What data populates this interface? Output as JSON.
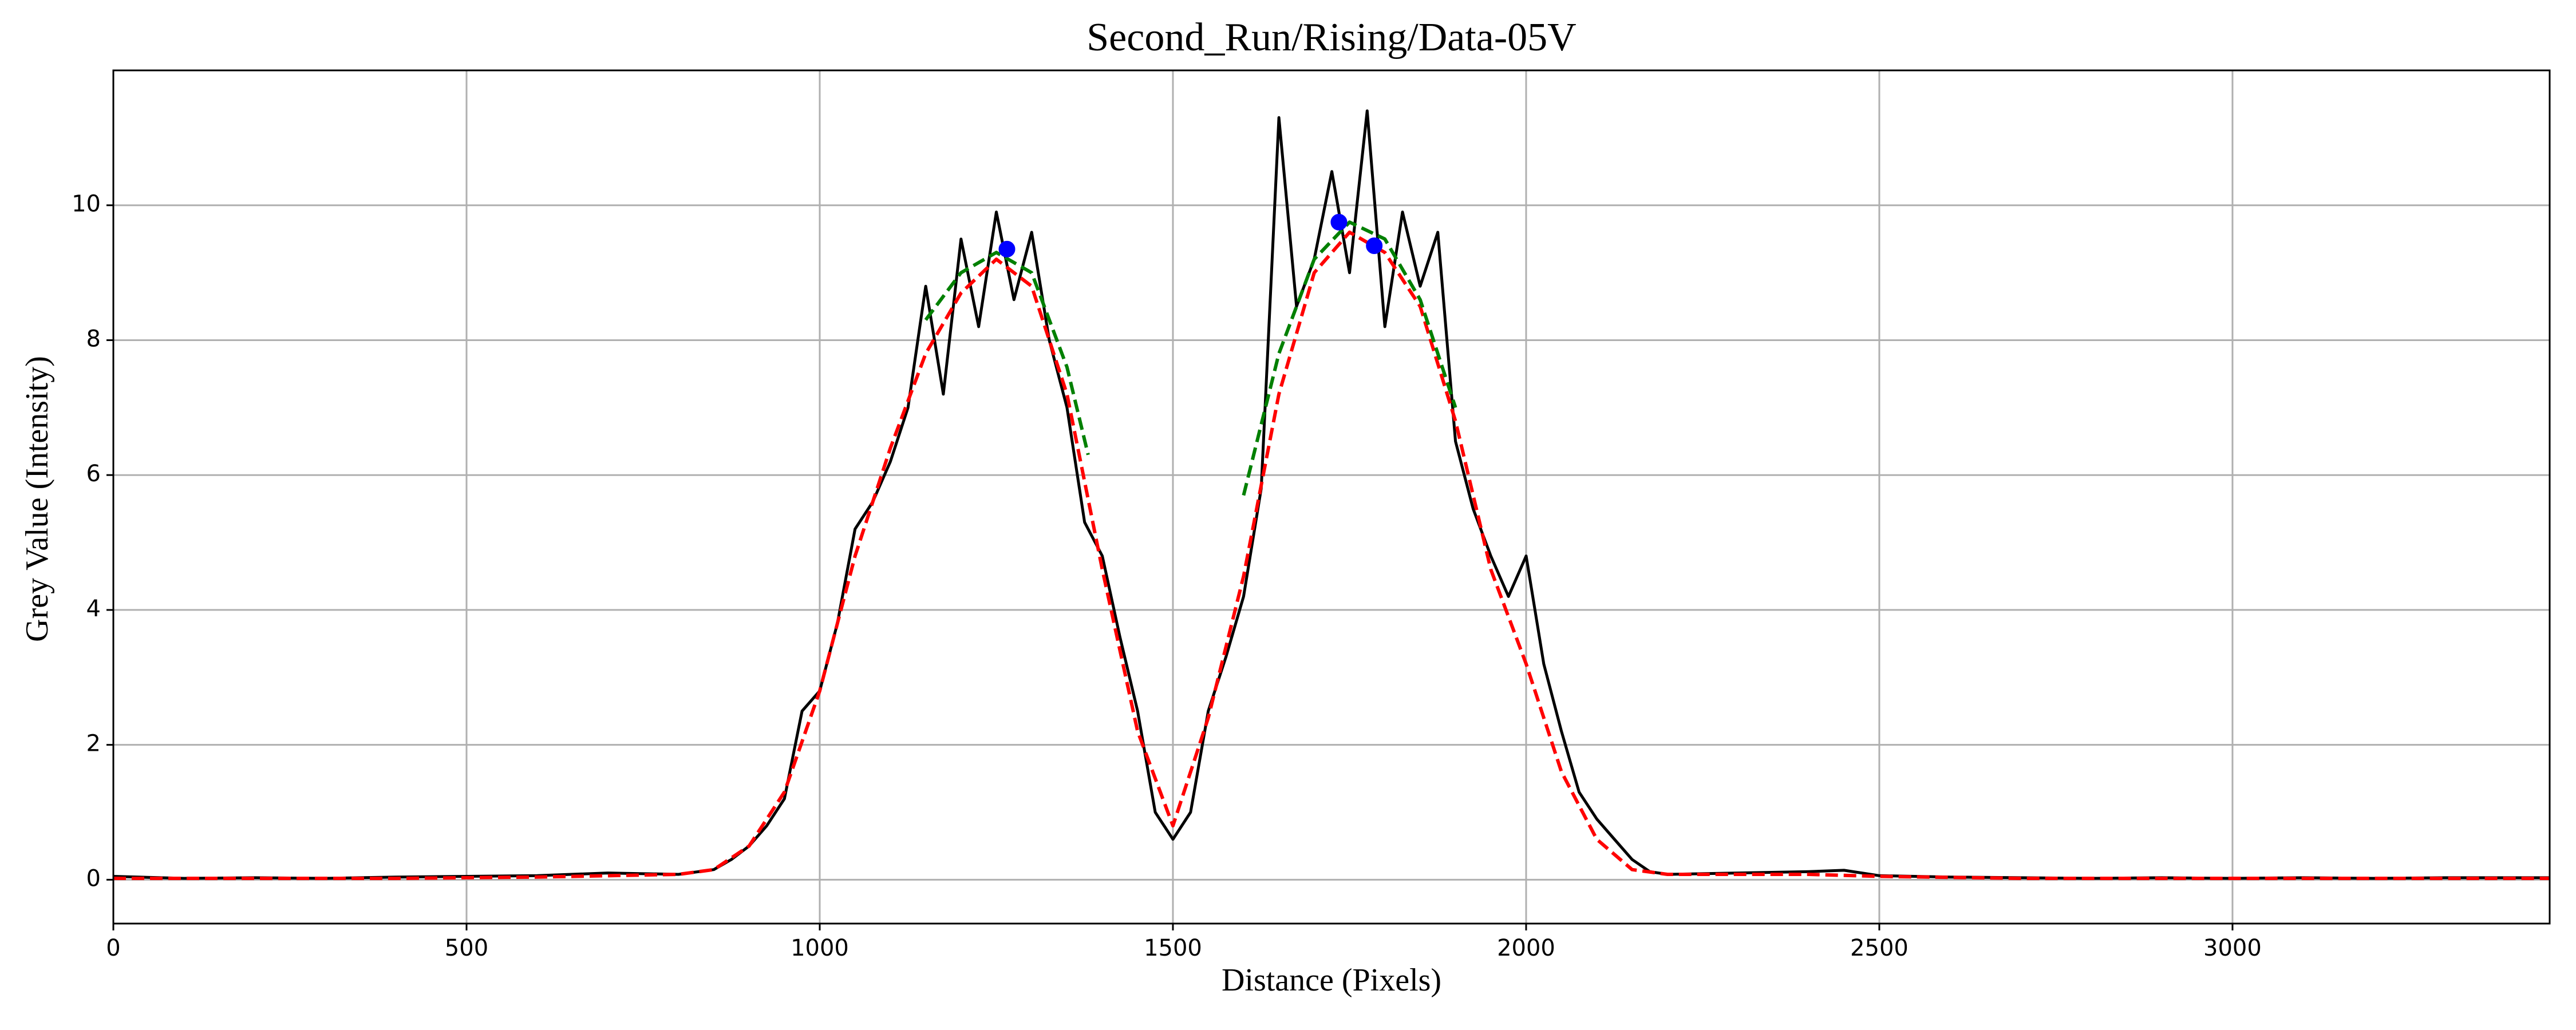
{
  "chart_data": {
    "type": "line",
    "title": "Second_Run/Rising/Data-05V",
    "x_label": "Distance (Pixels)",
    "y_label": "Grey Value (Intensity)",
    "xlim": [
      0,
      3449
    ],
    "ylim": [
      -0.65,
      12.0
    ],
    "xticks": [
      0,
      500,
      1000,
      1500,
      2000,
      2500,
      3000
    ],
    "yticks": [
      0,
      2,
      4,
      6,
      8,
      10
    ],
    "grid": true,
    "series": [
      {
        "color": "#000000",
        "style": "solid",
        "x": [
          0,
          100,
          200,
          300,
          400,
          500,
          600,
          700,
          800,
          850,
          875,
          900,
          925,
          950,
          975,
          1000,
          1025,
          1050,
          1075,
          1100,
          1125,
          1150,
          1175,
          1200,
          1225,
          1250,
          1275,
          1300,
          1325,
          1350,
          1375,
          1400,
          1425,
          1450,
          1475,
          1500,
          1525,
          1550,
          1575,
          1600,
          1625,
          1650,
          1675,
          1700,
          1725,
          1750,
          1775,
          1800,
          1825,
          1850,
          1875,
          1900,
          1925,
          1950,
          1975,
          2000,
          2025,
          2050,
          2075,
          2100,
          2125,
          2150,
          2175,
          2200,
          2300,
          2400,
          2450,
          2500,
          2600,
          2700,
          2800,
          2900,
          3000,
          3100,
          3200,
          3300,
          3400,
          3449
        ],
        "values": [
          0.05,
          0.02,
          0.03,
          0.02,
          0.04,
          0.05,
          0.06,
          0.1,
          0.08,
          0.15,
          0.3,
          0.5,
          0.8,
          1.2,
          2.5,
          2.8,
          3.8,
          5.2,
          5.6,
          6.2,
          7.0,
          8.8,
          7.2,
          9.5,
          8.2,
          9.9,
          8.6,
          9.6,
          8.0,
          7.0,
          5.3,
          4.8,
          3.6,
          2.5,
          1.0,
          0.6,
          1.0,
          2.5,
          3.3,
          4.2,
          5.8,
          11.3,
          8.5,
          9.2,
          10.5,
          9.0,
          11.4,
          8.2,
          9.9,
          8.8,
          9.6,
          6.5,
          5.5,
          4.8,
          4.2,
          4.8,
          3.2,
          2.2,
          1.3,
          0.9,
          0.6,
          0.3,
          0.12,
          0.08,
          0.1,
          0.12,
          0.14,
          0.06,
          0.04,
          0.03,
          0.02,
          0.03,
          0.02,
          0.03,
          0.02,
          0.03,
          0.03,
          0.03
        ]
      },
      {
        "color": "#ff0000",
        "style": "dashed",
        "x": [
          0,
          200,
          400,
          600,
          800,
          850,
          900,
          950,
          1000,
          1050,
          1100,
          1150,
          1200,
          1250,
          1300,
          1350,
          1400,
          1450,
          1500,
          1550,
          1600,
          1650,
          1700,
          1750,
          1800,
          1850,
          1900,
          1950,
          2000,
          2050,
          2100,
          2150,
          2200,
          2300,
          2400,
          2500,
          2700,
          2900,
          3100,
          3300,
          3449
        ],
        "values": [
          0.02,
          0.02,
          0.02,
          0.04,
          0.08,
          0.15,
          0.5,
          1.3,
          2.8,
          4.8,
          6.4,
          7.8,
          8.7,
          9.2,
          8.8,
          7.2,
          4.6,
          2.2,
          0.8,
          2.4,
          4.5,
          7.2,
          9.0,
          9.6,
          9.3,
          8.5,
          6.8,
          4.6,
          3.2,
          1.6,
          0.6,
          0.15,
          0.08,
          0.08,
          0.08,
          0.05,
          0.02,
          0.02,
          0.02,
          0.02,
          0.02
        ]
      },
      {
        "color": "#008000",
        "style": "dashed",
        "x": [
          1150,
          1200,
          1250,
          1300,
          1350,
          1380
        ],
        "values": [
          8.3,
          9.0,
          9.3,
          9.0,
          7.6,
          6.3
        ]
      },
      {
        "color": "#008000",
        "style": "dashed",
        "x": [
          1600,
          1650,
          1700,
          1750,
          1800,
          1850,
          1900
        ],
        "values": [
          5.7,
          7.8,
          9.2,
          9.75,
          9.5,
          8.6,
          7.0
        ]
      },
      {
        "color": "#0000ff",
        "style": "markers",
        "x": [
          1265,
          1735,
          1785
        ],
        "values": [
          9.35,
          9.75,
          9.4
        ]
      }
    ]
  }
}
